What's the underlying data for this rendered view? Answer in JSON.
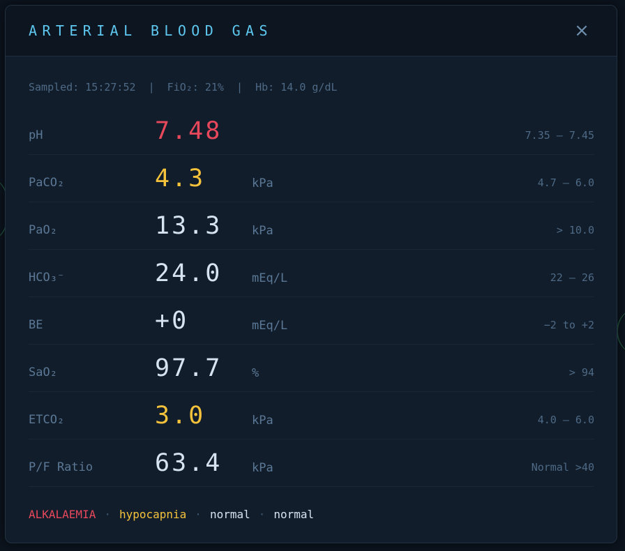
{
  "modal": {
    "title": "ARTERIAL BLOOD GAS",
    "close_label": "×",
    "sample_info": "Sampled: 15:27:52  |  FiO₂: 21%  |  Hb: 14.0 g/dL"
  },
  "colors": {
    "alarm": "#e8485c",
    "warning": "#f5c23c",
    "normal": "#d6e4f2",
    "accent": "#5ec8f0"
  },
  "rows": [
    {
      "label": "pH",
      "value": "7.48",
      "unit": "",
      "range": "7.35 – 7.45",
      "status": "alarm"
    },
    {
      "label": "PaCO₂",
      "value": "4.3",
      "unit": "kPa",
      "range": "4.7 – 6.0",
      "status": "warning"
    },
    {
      "label": "PaO₂",
      "value": "13.3",
      "unit": "kPa",
      "range": "> 10.0",
      "status": "normal"
    },
    {
      "label": "HCO₃⁻",
      "value": "24.0",
      "unit": "mEq/L",
      "range": "22 – 26",
      "status": "normal"
    },
    {
      "label": "BE",
      "value": "+0",
      "unit": "mEq/L",
      "range": "−2 to +2",
      "status": "normal"
    },
    {
      "label": "SaO₂",
      "value": "97.7",
      "unit": "%",
      "range": "> 94",
      "status": "normal"
    },
    {
      "label": "ETCO₂",
      "value": "3.0",
      "unit": "kPa",
      "range": "4.0 – 6.0",
      "status": "warning"
    },
    {
      "label": "P/F Ratio",
      "value": "63.4",
      "unit": "kPa",
      "range": "Normal >40",
      "status": "normal"
    }
  ],
  "summary": {
    "items": [
      {
        "text": "ALKALAEMIA",
        "status": "alarm"
      },
      {
        "text": "hypocapnia",
        "status": "warning"
      },
      {
        "text": "normal",
        "status": "normal"
      },
      {
        "text": "normal",
        "status": "normal"
      }
    ],
    "separator": "·"
  }
}
